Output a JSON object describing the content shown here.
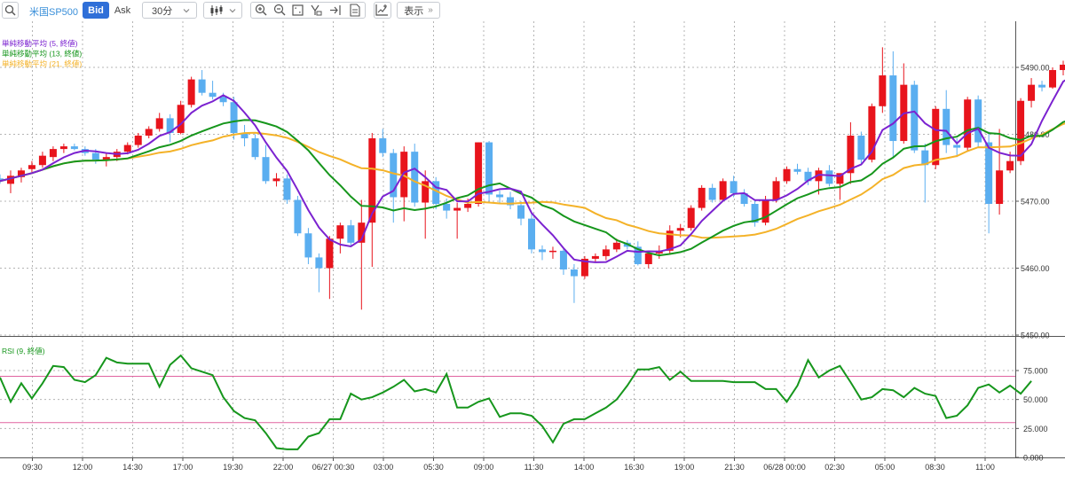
{
  "toolbar": {
    "symbol": "米国SP500",
    "bid_label": "Bid",
    "ask_label": "Ask",
    "interval": "30分",
    "display_label": "表示",
    "display_chevron": "»"
  },
  "colors": {
    "up": "#e8141c",
    "down": "#5aaef0",
    "sma5": "#7b22d0",
    "sma13": "#16961c",
    "sma21": "#f4b228",
    "rsi": "#16961c",
    "rsi_levels": "#e064a0",
    "grid": "#b4b4b4",
    "bid_active": "#2f6fd8"
  },
  "chart_data": [
    {
      "type": "candlestick",
      "legend_placement": "top-left",
      "legend": [
        {
          "name": "単純移動平均 (5, 終値)",
          "color": "#7b22d0"
        },
        {
          "name": "単純移動平均 (13, 終値)",
          "color": "#16961c"
        },
        {
          "name": "単純移動平均 (21, 終値)",
          "color": "#f4b228"
        }
      ],
      "y_ticks": [
        "5490.00",
        "5480.00",
        "5470.00",
        "5460.00",
        "5450.00"
      ],
      "ylim": [
        5450,
        5491
      ],
      "x_ticks": [
        "09:30",
        "12:00",
        "14:30",
        "17:00",
        "19:30",
        "22:00",
        "06/27 00:30",
        "03:00",
        "05:30",
        "09:00",
        "11:30",
        "14:00",
        "16:30",
        "19:00",
        "21:30",
        "06/28 00:00",
        "02:30",
        "05:00",
        "08:30",
        "11:00"
      ],
      "grid": true,
      "candles": [
        [
          5473.4,
          5474.0,
          5472.6,
          5473.0
        ],
        [
          5472.6,
          5474.6,
          5471.2,
          5473.8
        ],
        [
          5473.6,
          5475.0,
          5472.8,
          5474.6
        ],
        [
          5474.8,
          5476.0,
          5474.2,
          5475.4
        ],
        [
          5475.4,
          5477.4,
          5475.0,
          5476.8
        ],
        [
          5476.6,
          5478.2,
          5476.0,
          5477.8
        ],
        [
          5477.8,
          5478.6,
          5477.2,
          5478.2
        ],
        [
          5478.2,
          5478.6,
          5477.6,
          5477.8
        ],
        [
          5477.8,
          5478.2,
          5476.8,
          5477.2
        ],
        [
          5477.2,
          5477.8,
          5475.6,
          5476.2
        ],
        [
          5476.2,
          5477.2,
          5475.2,
          5476.6
        ],
        [
          5476.6,
          5477.8,
          5476.0,
          5477.4
        ],
        [
          5477.4,
          5478.8,
          5477.0,
          5478.4
        ],
        [
          5478.4,
          5480.2,
          5478.0,
          5479.8
        ],
        [
          5479.8,
          5481.2,
          5479.4,
          5480.8
        ],
        [
          5480.8,
          5483.2,
          5480.4,
          5482.4
        ],
        [
          5482.4,
          5483.0,
          5478.8,
          5480.2
        ],
        [
          5480.2,
          5485.0,
          5480.0,
          5484.4
        ],
        [
          5484.4,
          5488.6,
          5484.0,
          5488.2
        ],
        [
          5488.2,
          5489.6,
          5485.8,
          5486.2
        ],
        [
          5486.2,
          5488.0,
          5485.2,
          5485.6
        ],
        [
          5485.6,
          5486.2,
          5484.2,
          5484.8
        ],
        [
          5484.8,
          5485.6,
          5479.2,
          5480.2
        ],
        [
          5480.2,
          5481.4,
          5478.2,
          5479.4
        ],
        [
          5479.4,
          5480.0,
          5476.2,
          5476.6
        ],
        [
          5476.6,
          5478.4,
          5472.6,
          5473.0
        ],
        [
          5473.0,
          5474.2,
          5472.2,
          5473.4
        ],
        [
          5473.4,
          5474.0,
          5469.6,
          5470.2
        ],
        [
          5470.2,
          5470.8,
          5464.8,
          5465.2
        ],
        [
          5465.2,
          5466.0,
          5460.6,
          5461.6
        ],
        [
          5461.6,
          5462.2,
          5456.4,
          5460.0
        ],
        [
          5460.0,
          5464.8,
          5455.4,
          5464.4
        ],
        [
          5464.4,
          5466.8,
          5462.2,
          5466.4
        ],
        [
          5466.4,
          5467.2,
          5463.4,
          5463.8
        ],
        [
          5463.8,
          5470.2,
          5453.8,
          5466.8
        ],
        [
          5466.8,
          5480.2,
          5460.2,
          5479.4
        ],
        [
          5479.4,
          5480.8,
          5476.6,
          5477.2
        ],
        [
          5477.2,
          5477.8,
          5466.8,
          5470.6
        ],
        [
          5470.6,
          5478.2,
          5467.0,
          5477.4
        ],
        [
          5477.4,
          5478.6,
          5469.2,
          5469.8
        ],
        [
          5469.8,
          5474.6,
          5464.4,
          5473.0
        ],
        [
          5473.0,
          5473.6,
          5468.8,
          5469.6
        ],
        [
          5469.6,
          5470.4,
          5467.4,
          5468.6
        ],
        [
          5468.6,
          5469.8,
          5464.4,
          5469.0
        ],
        [
          5469.0,
          5470.4,
          5468.4,
          5469.6
        ],
        [
          5469.6,
          5478.8,
          5469.2,
          5478.8
        ],
        [
          5478.8,
          5479.0,
          5470.0,
          5471.0
        ],
        [
          5471.0,
          5471.6,
          5469.6,
          5470.6
        ],
        [
          5470.6,
          5471.4,
          5468.8,
          5469.4
        ],
        [
          5469.4,
          5470.0,
          5466.4,
          5467.4
        ],
        [
          5467.4,
          5468.4,
          5462.2,
          5462.8
        ],
        [
          5462.8,
          5463.4,
          5461.2,
          5462.4
        ],
        [
          5462.4,
          5463.2,
          5461.4,
          5462.6
        ],
        [
          5462.6,
          5463.0,
          5459.0,
          5459.8
        ],
        [
          5459.8,
          5460.6,
          5454.8,
          5458.8
        ],
        [
          5458.8,
          5461.8,
          5458.4,
          5461.4
        ],
        [
          5461.4,
          5462.2,
          5460.8,
          5461.8
        ],
        [
          5461.8,
          5463.4,
          5461.2,
          5462.8
        ],
        [
          5462.8,
          5464.4,
          5462.4,
          5463.8
        ],
        [
          5463.8,
          5464.2,
          5462.8,
          5463.2
        ],
        [
          5463.2,
          5464.0,
          5460.4,
          5460.6
        ],
        [
          5460.6,
          5462.6,
          5460.0,
          5462.2
        ],
        [
          5462.2,
          5463.4,
          5461.4,
          5462.6
        ],
        [
          5462.6,
          5466.4,
          5462.0,
          5465.6
        ],
        [
          5465.6,
          5466.6,
          5464.6,
          5466.0
        ],
        [
          5466.0,
          5469.4,
          5465.6,
          5469.0
        ],
        [
          5469.0,
          5472.4,
          5468.6,
          5472.0
        ],
        [
          5472.0,
          5472.6,
          5469.8,
          5470.2
        ],
        [
          5470.2,
          5473.4,
          5470.0,
          5473.0
        ],
        [
          5473.0,
          5473.8,
          5470.6,
          5471.2
        ],
        [
          5471.2,
          5471.8,
          5469.2,
          5469.6
        ],
        [
          5469.6,
          5470.2,
          5466.2,
          5466.8
        ],
        [
          5466.8,
          5470.8,
          5466.4,
          5470.2
        ],
        [
          5470.2,
          5473.6,
          5469.8,
          5473.0
        ],
        [
          5473.0,
          5475.2,
          5472.6,
          5474.8
        ],
        [
          5474.8,
          5475.6,
          5474.0,
          5474.4
        ],
        [
          5474.4,
          5475.0,
          5472.4,
          5473.0
        ],
        [
          5473.0,
          5475.0,
          5471.0,
          5474.6
        ],
        [
          5474.6,
          5475.4,
          5472.2,
          5472.6
        ],
        [
          5472.6,
          5474.0,
          5470.2,
          5474.2
        ],
        [
          5474.2,
          5481.8,
          5472.6,
          5479.8
        ],
        [
          5479.8,
          5480.4,
          5475.4,
          5476.2
        ],
        [
          5476.2,
          5484.6,
          5475.8,
          5484.2
        ],
        [
          5484.2,
          5493.0,
          5483.2,
          5488.8
        ],
        [
          5488.8,
          5492.4,
          5476.6,
          5479.0
        ],
        [
          5479.0,
          5490.6,
          5478.6,
          5487.4
        ],
        [
          5487.4,
          5488.0,
          5477.2,
          5477.6
        ],
        [
          5477.6,
          5478.6,
          5469.8,
          5475.4
        ],
        [
          5475.4,
          5484.2,
          5474.8,
          5483.8
        ],
        [
          5483.8,
          5486.6,
          5477.2,
          5478.4
        ],
        [
          5478.4,
          5479.4,
          5476.6,
          5478.0
        ],
        [
          5478.0,
          5485.6,
          5477.6,
          5485.2
        ],
        [
          5485.2,
          5485.8,
          5478.0,
          5478.8
        ],
        [
          5478.8,
          5480.4,
          5465.2,
          5469.6
        ],
        [
          5469.6,
          5480.8,
          5468.0,
          5474.6
        ],
        [
          5474.6,
          5477.4,
          5474.2,
          5476.0
        ],
        [
          5476.0,
          5485.4,
          5475.4,
          5485.0
        ],
        [
          5485.0,
          5488.4,
          5484.0,
          5487.4
        ],
        [
          5487.4,
          5488.0,
          5486.4,
          5487.0
        ],
        [
          5487.0,
          5490.0,
          5486.8,
          5489.6
        ],
        [
          5489.6,
          5491.0,
          5488.8,
          5490.4
        ],
        [
          5490.4,
          5490.8,
          5489.6,
          5490.0
        ]
      ]
    },
    {
      "type": "line",
      "legend": [
        {
          "name": "RSI (9, 終値)",
          "color": "#16961c"
        }
      ],
      "levels": [
        30,
        70
      ],
      "ylim": [
        0,
        100
      ],
      "y_ticks": [
        "75.000",
        "50.000",
        "25.000",
        "0.000"
      ],
      "series": [
        {
          "name": "RSI (9, 終値)",
          "values": [
            69,
            48,
            64,
            51,
            64,
            79,
            78,
            67,
            65,
            71,
            86,
            82,
            81,
            81,
            81,
            61,
            80,
            88,
            77,
            74,
            71,
            52,
            40,
            34,
            32,
            21,
            8,
            7,
            7,
            18,
            21,
            33,
            33,
            55,
            50,
            52,
            56,
            61,
            67,
            57,
            59,
            56,
            72,
            43,
            43,
            48,
            51,
            35,
            38,
            38,
            36,
            27,
            13,
            29,
            33,
            33,
            38,
            43,
            50,
            62,
            76,
            76,
            78,
            67,
            74,
            66,
            66,
            66,
            66,
            65,
            65,
            65,
            59,
            59,
            48,
            62,
            84,
            69,
            75,
            79,
            65,
            50,
            52,
            59,
            58,
            52,
            60,
            55,
            53,
            34,
            36,
            45,
            60,
            63,
            56,
            62,
            55,
            66
          ]
        }
      ]
    }
  ]
}
